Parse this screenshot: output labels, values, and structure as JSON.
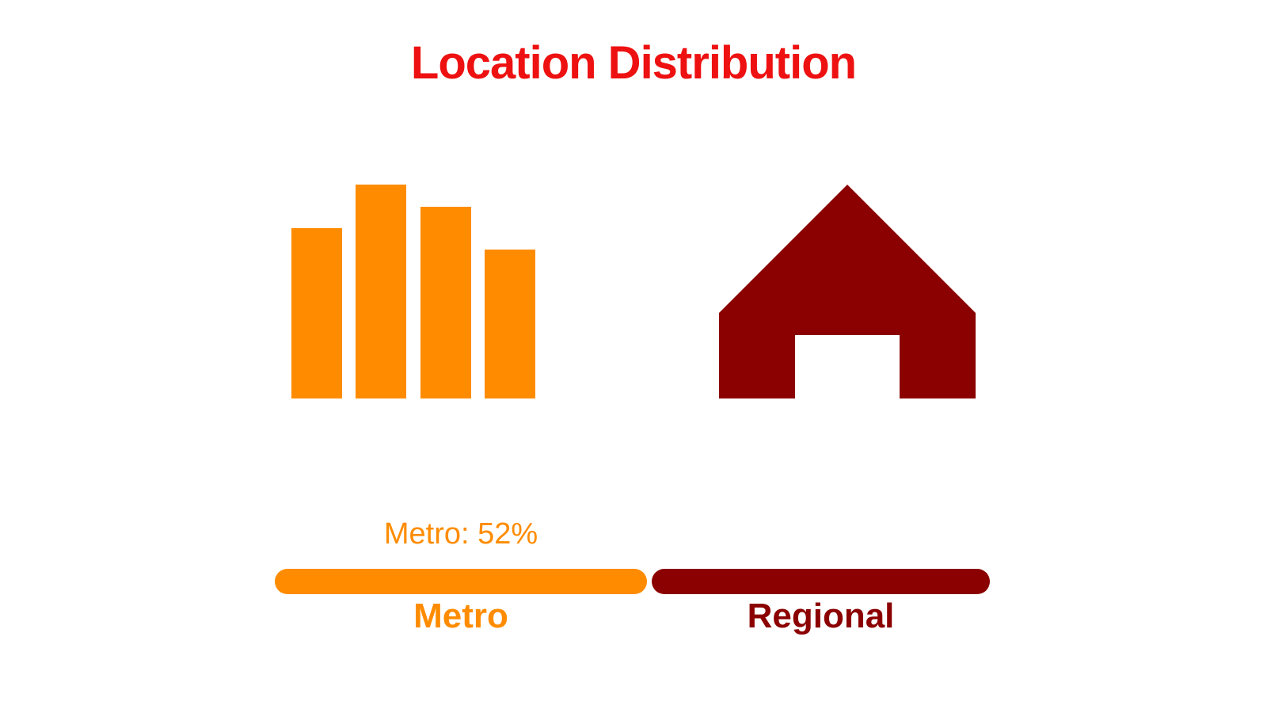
{
  "title": "Location Distribution",
  "colors": {
    "title_red": "#EE1111",
    "metro_orange": "#FF8C00",
    "regional_dark_red": "#8B0000",
    "background": "#FFFFFF"
  },
  "icons": {
    "metro": "bar-chart-icon",
    "regional": "house-icon"
  },
  "distribution": {
    "annotation": "Metro: 52%",
    "segments": [
      {
        "label": "Metro",
        "value_pct": 52,
        "color": "#FF8C00"
      },
      {
        "label": "Regional",
        "value_pct": 48,
        "color": "#8B0000"
      }
    ]
  },
  "chart_data": {
    "type": "bar",
    "title": "Location Distribution",
    "categories": [
      "Metro",
      "Regional"
    ],
    "values": [
      52,
      48
    ],
    "unit": "percent",
    "annotations": [
      "Metro: 52%"
    ],
    "layout": "single horizontal stacked split bar with rounded segments, category icons above, labels below",
    "legend_position": "below-bar",
    "grid": false,
    "colors": {
      "Metro": "#FF8C00",
      "Regional": "#8B0000"
    }
  }
}
